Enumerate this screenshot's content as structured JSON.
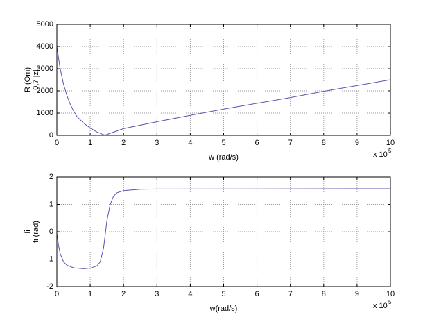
{
  "chart_data": [
    {
      "type": "line",
      "ylabel": [
        "R (Om)",
        "0,7 |z|"
      ],
      "xlabel": "w (rad/s)",
      "x_multiplier": "x 10",
      "x_multiplier_exponent": 5,
      "x": [
        0,
        0.1,
        0.2,
        0.3,
        0.4,
        0.5,
        0.6,
        0.8,
        1.0,
        1.2,
        1.4,
        1.45,
        1.5,
        2,
        3,
        4,
        5,
        6,
        7,
        8,
        9,
        10
      ],
      "series": [
        {
          "color": "#5555aa",
          "values": [
            4000,
            3000,
            2300,
            1800,
            1400,
            1100,
            850,
            550,
            330,
            150,
            30,
            10,
            40,
            300,
            610,
            900,
            1180,
            1440,
            1700,
            1980,
            2240,
            2500
          ]
        }
      ],
      "xlim": [
        0,
        10
      ],
      "xticks": [
        0,
        1,
        2,
        3,
        4,
        5,
        6,
        7,
        8,
        9,
        10
      ],
      "ylim": [
        0,
        5000
      ],
      "yticks": [
        0,
        1000,
        2000,
        3000,
        4000,
        5000
      ],
      "grid": true
    },
    {
      "type": "line",
      "ylabel": [
        "fi",
        "fi (rad)"
      ],
      "xlabel": "w(rad/s)",
      "x_multiplier": "x 10",
      "x_multiplier_exponent": 5,
      "x": [
        0,
        0.05,
        0.1,
        0.2,
        0.3,
        0.5,
        0.8,
        1.0,
        1.2,
        1.3,
        1.4,
        1.45,
        1.5,
        1.6,
        1.7,
        1.8,
        2.0,
        2.5,
        3,
        10
      ],
      "series": [
        {
          "color": "#5555aa",
          "values": [
            -0.05,
            -0.5,
            -0.8,
            -1.1,
            -1.22,
            -1.32,
            -1.35,
            -1.33,
            -1.25,
            -1.1,
            -0.6,
            -0.1,
            0.4,
            1.0,
            1.3,
            1.42,
            1.5,
            1.55,
            1.56,
            1.57
          ]
        }
      ],
      "xlim": [
        0,
        10
      ],
      "xticks": [
        0,
        1,
        2,
        3,
        4,
        5,
        6,
        7,
        8,
        9,
        10
      ],
      "ylim": [
        -2,
        2
      ],
      "yticks": [
        -2,
        -1,
        0,
        1,
        2
      ],
      "grid": true
    }
  ]
}
